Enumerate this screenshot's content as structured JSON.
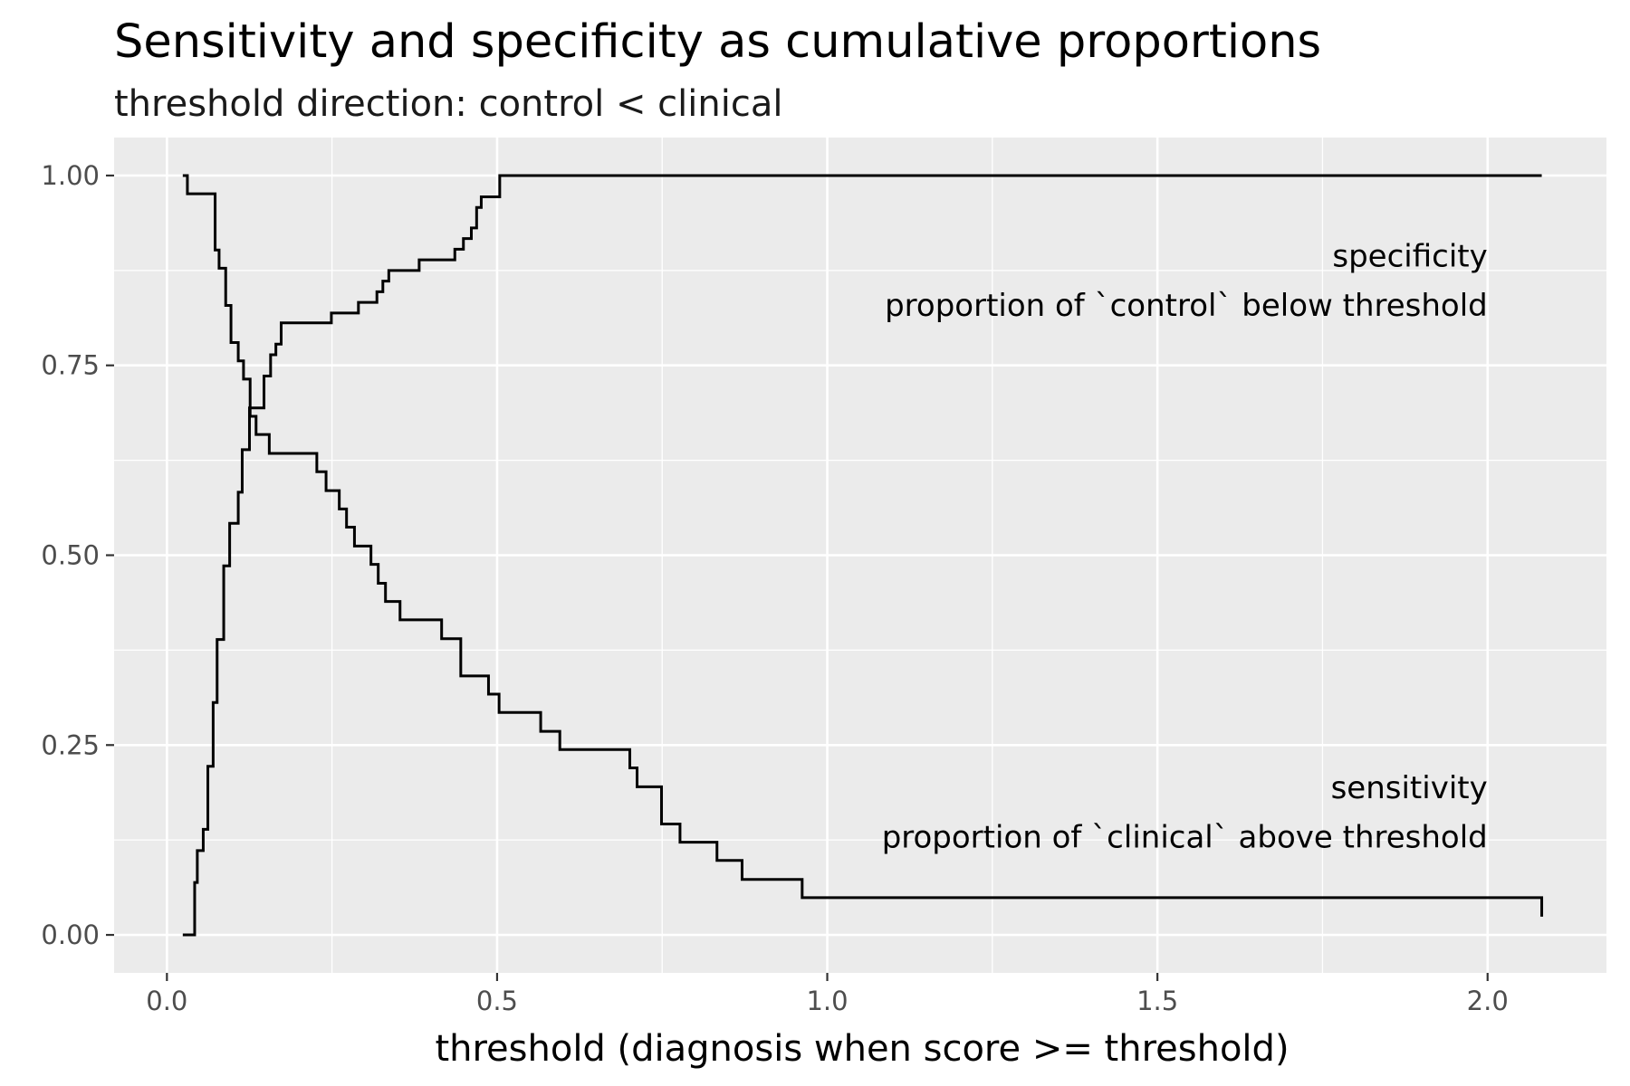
{
  "chart_data": {
    "type": "line",
    "title": "Sensitivity and specificity as cumulative proportions",
    "subtitle": "threshold direction: control < clinical",
    "xlabel": "threshold (diagnosis when score >= threshold)",
    "ylabel": "",
    "xlim": [
      -0.08,
      2.18
    ],
    "ylim": [
      -0.05,
      1.05
    ],
    "x_ticks": [
      0.0,
      0.5,
      1.0,
      1.5,
      2.0
    ],
    "x_tick_labels": [
      "0.0",
      "0.5",
      "1.0",
      "1.5",
      "2.0"
    ],
    "y_ticks": [
      0.0,
      0.25,
      0.5,
      0.75,
      1.0
    ],
    "y_tick_labels": [
      "0.00",
      "0.25",
      "0.50",
      "0.75",
      "1.00"
    ],
    "grid": true,
    "panel_color": "#ebebeb",
    "line_color": "#000000",
    "step": "hv",
    "series": [
      {
        "x": [
          0.024,
          0.042,
          0.046,
          0.055,
          0.062,
          0.07,
          0.076,
          0.086,
          0.095,
          0.101,
          0.108,
          0.114,
          0.125,
          0.136,
          0.147,
          0.157,
          0.165,
          0.173,
          0.181,
          0.19,
          0.199,
          0.249,
          0.29,
          0.318,
          0.327,
          0.336,
          0.382,
          0.436,
          0.449,
          0.461,
          0.469,
          0.476,
          0.485,
          0.504,
          2.082
        ],
        "y": [
          0.0,
          0.069,
          0.111,
          0.139,
          0.222,
          0.306,
          0.389,
          0.486,
          0.542,
          0.542,
          0.583,
          0.639,
          0.694,
          0.694,
          0.736,
          0.764,
          0.778,
          0.806,
          0.806,
          0.806,
          0.806,
          0.819,
          0.833,
          0.847,
          0.861,
          0.875,
          0.889,
          0.903,
          0.917,
          0.931,
          0.958,
          0.972,
          0.972,
          1.0,
          1.0
        ]
      },
      {
        "x": [
          0.024,
          0.031,
          0.073,
          0.079,
          0.089,
          0.097,
          0.108,
          0.116,
          0.126,
          0.135,
          0.143,
          0.155,
          0.17,
          0.227,
          0.241,
          0.261,
          0.272,
          0.284,
          0.309,
          0.32,
          0.331,
          0.353,
          0.416,
          0.445,
          0.487,
          0.503,
          0.566,
          0.595,
          0.701,
          0.712,
          0.749,
          0.777,
          0.833,
          0.871,
          0.962,
          2.082
        ],
        "y": [
          1.0,
          0.976,
          0.902,
          0.878,
          0.829,
          0.78,
          0.756,
          0.732,
          0.683,
          0.659,
          0.659,
          0.634,
          0.634,
          0.61,
          0.585,
          0.561,
          0.537,
          0.512,
          0.488,
          0.463,
          0.439,
          0.415,
          0.39,
          0.341,
          0.317,
          0.293,
          0.268,
          0.244,
          0.22,
          0.195,
          0.146,
          0.122,
          0.098,
          0.073,
          0.049,
          0.024
        ]
      }
    ],
    "annotations": [
      {
        "x": 2.0,
        "y": 0.88,
        "text": "specificity"
      },
      {
        "x": 2.0,
        "y": 0.815,
        "text": "proportion of `control` below threshold"
      },
      {
        "x": 2.0,
        "y": 0.18,
        "text": "sensitivity"
      },
      {
        "x": 2.0,
        "y": 0.115,
        "text": "proportion of `clinical` above threshold"
      }
    ]
  }
}
